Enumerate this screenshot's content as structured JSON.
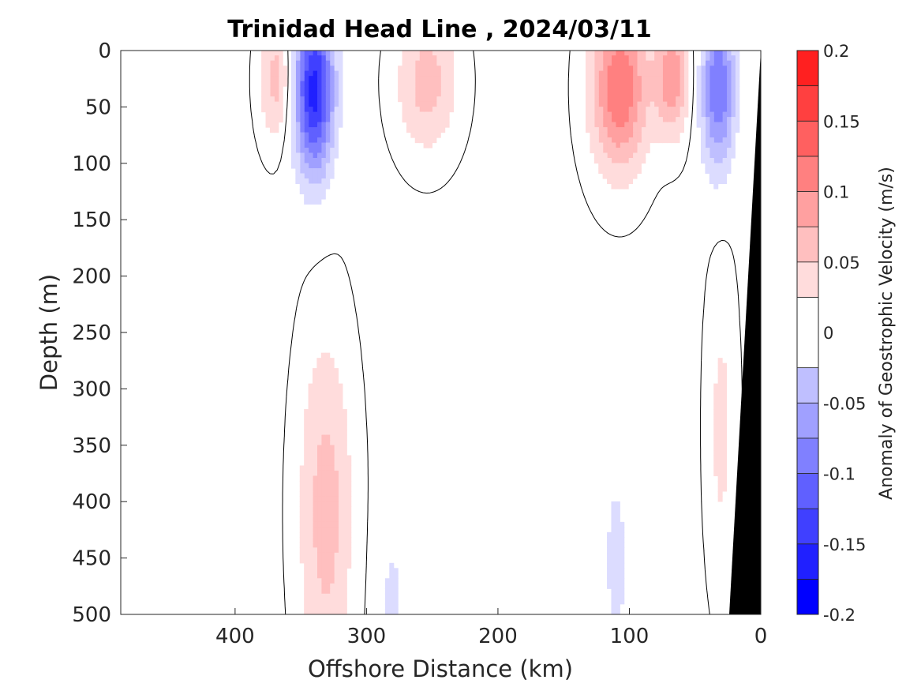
{
  "chart_data": {
    "type": "heatmap",
    "title": "Trinidad Head Line , 2024/03/11",
    "xlabel": "Offshore Distance (km)",
    "ylabel": "Depth (m)",
    "colorbar_label": "Anomaly of Geostrophic Velocity (m/s)",
    "x_reversed": true,
    "xlim": [
      0,
      487
    ],
    "ylim": [
      0,
      500
    ],
    "x_ticks": [
      400,
      300,
      200,
      100,
      0
    ],
    "y_ticks": [
      0,
      50,
      100,
      150,
      200,
      250,
      300,
      350,
      400,
      450,
      500
    ],
    "colorbar_ticks": [
      0.2,
      0.15,
      0.1,
      0.05,
      0,
      -0.05,
      -0.1,
      -0.15,
      -0.2
    ],
    "colorbar_ticks_labels": [
      "0.2",
      "0.15",
      "0.1",
      "0.05",
      "0",
      "-0.05",
      "-0.1",
      "-0.15",
      "-0.2"
    ],
    "contour_levels": [
      -0.2,
      -0.175,
      -0.15,
      -0.125,
      -0.1,
      -0.075,
      -0.05,
      -0.025,
      0.025,
      0.05,
      0.075,
      0.1,
      0.125,
      0.15,
      0.175,
      0.2
    ],
    "level_colors": [
      "#0000ff",
      "#2020ff",
      "#4040ff",
      "#6060ff",
      "#8080ff",
      "#a0a0ff",
      "#bfbfff",
      "#dcdcff",
      "#ffffff",
      "#ffdcdc",
      "#ffbfbf",
      "#ffa0a0",
      "#ff8080",
      "#ff6060",
      "#ff4040",
      "#ff2020",
      "#ff0000"
    ],
    "bathymetry_color": "#000000",
    "velocity_features": [
      {
        "sign": "positive",
        "x_range": [
          357,
          380
        ],
        "depth_range": [
          0,
          90
        ],
        "max_anomaly": 0.05
      },
      {
        "sign": "negative",
        "x_range": [
          325,
          355
        ],
        "depth_range": [
          0,
          125
        ],
        "max_anomaly": -0.15
      },
      {
        "sign": "positive",
        "x_range": [
          230,
          278
        ],
        "depth_range": [
          0,
          100
        ],
        "max_anomaly": 0.05
      },
      {
        "sign": "positive",
        "x_range": [
          85,
          130
        ],
        "depth_range": [
          0,
          120
        ],
        "max_anomaly": 0.1
      },
      {
        "sign": "positive",
        "x_range": [
          55,
          80
        ],
        "depth_range": [
          0,
          85
        ],
        "max_anomaly": 0.075
      },
      {
        "sign": "negative",
        "x_range": [
          20,
          45
        ],
        "depth_range": [
          0,
          120
        ],
        "max_anomaly": -0.1
      },
      {
        "sign": "positive",
        "x_range": [
          310,
          352
        ],
        "depth_range": [
          240,
          500
        ],
        "max_anomaly": 0.05
      },
      {
        "sign": "negative",
        "x_range": [
          270,
          290
        ],
        "depth_range": [
          405,
          500
        ],
        "max_anomaly": -0.025
      },
      {
        "sign": "negative",
        "x_range": [
          98,
          122
        ],
        "depth_range": [
          325,
          500
        ],
        "max_anomaly": -0.025
      },
      {
        "sign": "positive",
        "x_range": [
          20,
          40
        ],
        "depth_range": [
          180,
          490
        ],
        "max_anomaly": 0.025
      }
    ],
    "shelf_bottom": [
      [
        0,
        0
      ],
      [
        0,
        500
      ],
      [
        24,
        500
      ]
    ]
  }
}
